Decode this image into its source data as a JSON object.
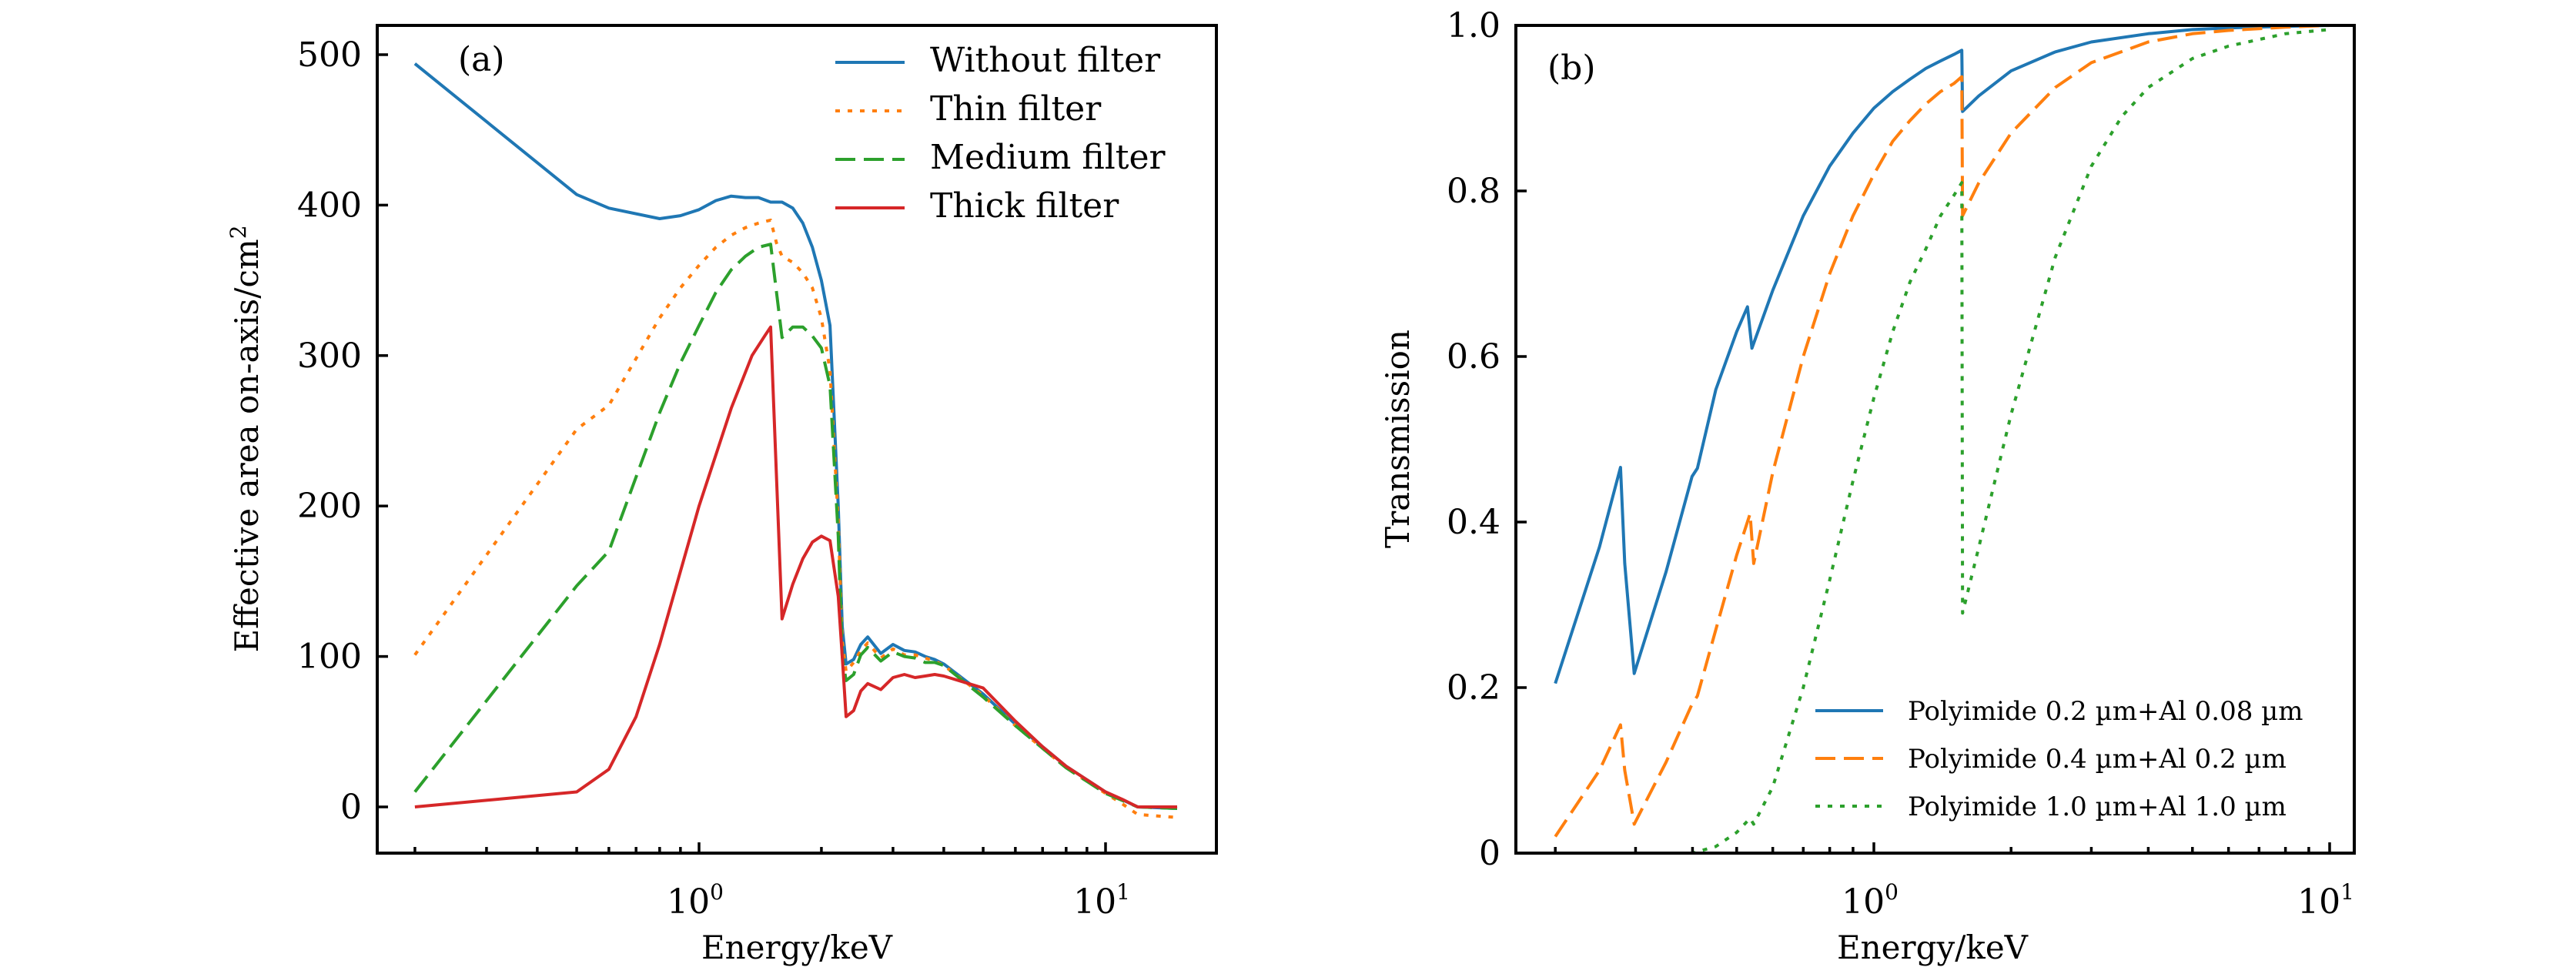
{
  "chart_data": [
    {
      "type": "line",
      "panel_label": "(a)",
      "title": "",
      "xlabel": "Energy/keV",
      "ylabel": "Effective area on-axis/cm",
      "ylabel_superscript": "2",
      "xscale": "log",
      "xlim": [
        0.15,
        18
      ],
      "ylim": [
        -32,
        520
      ],
      "xticks": [
        {
          "base": "10",
          "exp": "0",
          "value": 1
        },
        {
          "base": "10",
          "exp": "1",
          "value": 10
        }
      ],
      "yticks": [
        {
          "label": "0",
          "value": 0
        },
        {
          "label": "100",
          "value": 100
        },
        {
          "label": "200",
          "value": 200
        },
        {
          "label": "300",
          "value": 300
        },
        {
          "label": "400",
          "value": 400
        },
        {
          "label": "500",
          "value": 500
        }
      ],
      "legend_position": "top-right",
      "grid": false,
      "series": [
        {
          "name": "Without filter",
          "color": "#1f77b4",
          "style": "solid",
          "x": [
            0.2,
            0.5,
            0.6,
            0.8,
            0.9,
            1.0,
            1.1,
            1.2,
            1.3,
            1.4,
            1.5,
            1.6,
            1.7,
            1.8,
            1.9,
            2.0,
            2.1,
            2.2,
            2.25,
            2.3,
            2.4,
            2.5,
            2.6,
            2.8,
            3.0,
            3.2,
            3.4,
            3.6,
            3.8,
            4.0,
            5.0,
            6.0,
            7.0,
            8.0,
            10.0,
            12.0,
            15.0
          ],
          "y": [
            494,
            407,
            398,
            391,
            393,
            397,
            403,
            406,
            405,
            405,
            402,
            402,
            398,
            388,
            372,
            350,
            320,
            200,
            120,
            95,
            98,
            108,
            113,
            102,
            108,
            104,
            103,
            100,
            98,
            95,
            75,
            55,
            40,
            27,
            10,
            0,
            -1
          ]
        },
        {
          "name": "Thin filter",
          "color": "#ff7f0e",
          "style": "dotted",
          "x": [
            0.2,
            0.5,
            0.6,
            0.8,
            0.9,
            1.0,
            1.1,
            1.2,
            1.3,
            1.4,
            1.5,
            1.55,
            1.6,
            1.7,
            1.8,
            1.9,
            2.0,
            2.1,
            2.2,
            2.25,
            2.3,
            2.4,
            2.5,
            2.6,
            2.8,
            3.0,
            3.2,
            3.4,
            3.6,
            3.8,
            4.0,
            5.0,
            6.0,
            7.0,
            8.0,
            10.0,
            11.0,
            12.0,
            15.0
          ],
          "y": [
            101,
            251,
            267,
            325,
            345,
            360,
            372,
            380,
            385,
            388,
            390,
            375,
            366,
            362,
            355,
            345,
            325,
            290,
            190,
            110,
            90,
            96,
            104,
            109,
            99,
            105,
            101,
            101,
            99,
            97,
            94,
            74,
            54,
            39,
            26,
            9,
            2,
            -5,
            -7
          ]
        },
        {
          "name": "Medium filter",
          "color": "#2ca02c",
          "style": "dashed",
          "x": [
            0.2,
            0.5,
            0.6,
            0.8,
            0.9,
            1.0,
            1.1,
            1.2,
            1.3,
            1.4,
            1.5,
            1.6,
            1.7,
            1.8,
            1.9,
            2.0,
            2.1,
            2.2,
            2.25,
            2.3,
            2.4,
            2.5,
            2.6,
            2.8,
            3.0,
            3.2,
            3.4,
            3.6,
            3.8,
            4.0,
            5.0,
            6.0,
            7.0,
            8.0,
            10.0,
            12.0,
            15.0
          ],
          "y": [
            10,
            147,
            170,
            262,
            295,
            320,
            342,
            357,
            366,
            372,
            374,
            312,
            319,
            319,
            313,
            305,
            280,
            180,
            100,
            84,
            88,
            101,
            106,
            97,
            103,
            100,
            99,
            96,
            96,
            94,
            73,
            54,
            39,
            26,
            9,
            0,
            -1
          ]
        },
        {
          "name": "Thick filter",
          "color": "#d62728",
          "style": "solid",
          "x": [
            0.2,
            0.5,
            0.6,
            0.7,
            0.8,
            1.0,
            1.2,
            1.35,
            1.45,
            1.5,
            1.6,
            1.7,
            1.8,
            1.9,
            2.0,
            2.1,
            2.2,
            2.25,
            2.3,
            2.4,
            2.5,
            2.6,
            2.8,
            3.0,
            3.2,
            3.4,
            3.6,
            3.8,
            4.0,
            5.0,
            6.0,
            7.0,
            8.0,
            10.0,
            11.0,
            12.0,
            15.0
          ],
          "y": [
            0,
            10,
            25,
            60,
            108,
            200,
            265,
            300,
            313,
            319,
            125,
            148,
            165,
            176,
            180,
            177,
            140,
            100,
            60,
            64,
            77,
            82,
            78,
            86,
            88,
            86,
            87,
            88,
            87,
            79,
            57,
            40,
            27,
            10,
            5,
            0,
            0
          ]
        }
      ]
    },
    {
      "type": "line",
      "panel_label": "(b)",
      "title": "",
      "xlabel": "Energy/keV",
      "ylabel": "Transmission",
      "xscale": "log",
      "xlim": [
        0.164,
        11.2
      ],
      "ylim": [
        0,
        1.0
      ],
      "xticks": [
        {
          "base": "10",
          "exp": "0",
          "value": 1
        },
        {
          "base": "10",
          "exp": "1",
          "value": 10
        }
      ],
      "yticks": [
        {
          "label": "0",
          "value": 0
        },
        {
          "label": "0.2",
          "value": 0.2
        },
        {
          "label": "0.4",
          "value": 0.4
        },
        {
          "label": "0.6",
          "value": 0.6
        },
        {
          "label": "0.8",
          "value": 0.8
        },
        {
          "label": "1.0",
          "value": 1.0
        }
      ],
      "legend_position": "lower-right",
      "grid": false,
      "series": [
        {
          "name": "Polyimide 0.2 µm+Al 0.08 µm",
          "color": "#1f77b4",
          "style": "solid",
          "x": [
            0.2,
            0.25,
            0.278,
            0.284,
            0.298,
            0.35,
            0.399,
            0.41,
            0.45,
            0.5,
            0.528,
            0.54,
            0.6,
            0.7,
            0.8,
            0.9,
            1.0,
            1.1,
            1.2,
            1.3,
            1.4,
            1.5,
            1.559,
            1.565,
            1.7,
            2.0,
            2.5,
            3.0,
            4.0,
            5.0,
            6.0,
            8.0,
            10.0
          ],
          "y": [
            0.205,
            0.37,
            0.466,
            0.35,
            0.217,
            0.34,
            0.455,
            0.465,
            0.56,
            0.63,
            0.66,
            0.61,
            0.68,
            0.77,
            0.83,
            0.87,
            0.9,
            0.92,
            0.935,
            0.948,
            0.957,
            0.965,
            0.97,
            0.896,
            0.915,
            0.945,
            0.968,
            0.98,
            0.99,
            0.995,
            0.997,
            0.999,
            1.0
          ]
        },
        {
          "name": "Polyimide 0.4 µm+Al 0.2 µm",
          "color": "#ff7f0e",
          "style": "dashed",
          "x": [
            0.2,
            0.25,
            0.278,
            0.284,
            0.298,
            0.35,
            0.399,
            0.41,
            0.45,
            0.5,
            0.535,
            0.545,
            0.6,
            0.7,
            0.8,
            0.9,
            1.0,
            1.1,
            1.2,
            1.3,
            1.4,
            1.5,
            1.559,
            1.565,
            1.7,
            2.0,
            2.5,
            3.0,
            4.0,
            5.0,
            6.0,
            8.0,
            10.0
          ],
          "y": [
            0.02,
            0.1,
            0.155,
            0.1,
            0.035,
            0.11,
            0.18,
            0.19,
            0.27,
            0.36,
            0.41,
            0.35,
            0.46,
            0.6,
            0.7,
            0.77,
            0.82,
            0.86,
            0.885,
            0.905,
            0.92,
            0.93,
            0.938,
            0.77,
            0.81,
            0.87,
            0.925,
            0.955,
            0.98,
            0.99,
            0.994,
            0.998,
            1.0
          ]
        },
        {
          "name": "Polyimide 1.0 µm+Al 1.0 µm",
          "color": "#2ca02c",
          "style": "dotted",
          "x": [
            0.2,
            0.3,
            0.4,
            0.45,
            0.5,
            0.535,
            0.545,
            0.6,
            0.7,
            0.8,
            0.9,
            1.0,
            1.1,
            1.2,
            1.3,
            1.4,
            1.5,
            1.559,
            1.565,
            1.7,
            2.0,
            2.5,
            3.0,
            3.5,
            4.0,
            5.0,
            6.0,
            8.0,
            10.0
          ],
          "y": [
            0.0,
            0.0,
            0.0,
            0.008,
            0.025,
            0.042,
            0.035,
            0.08,
            0.2,
            0.33,
            0.45,
            0.55,
            0.63,
            0.69,
            0.73,
            0.77,
            0.795,
            0.81,
            0.29,
            0.37,
            0.53,
            0.72,
            0.83,
            0.89,
            0.925,
            0.96,
            0.975,
            0.99,
            0.995
          ]
        }
      ]
    }
  ]
}
